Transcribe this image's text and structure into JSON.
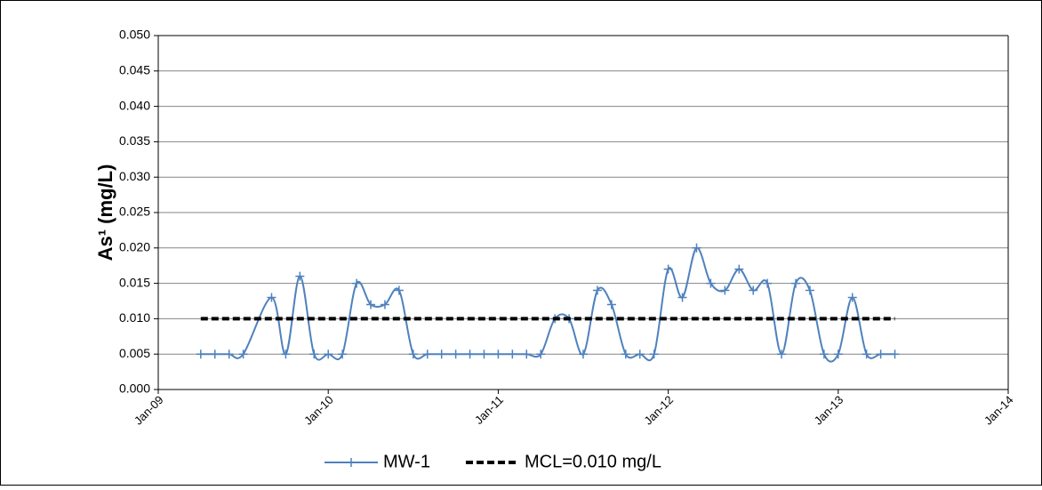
{
  "chart_data": {
    "type": "line",
    "y_label": "As¹ (mg/L)",
    "xlim": [
      "2009-01",
      "2014-01"
    ],
    "xticks": [
      {
        "value": "2009-01",
        "label": "Jan-09"
      },
      {
        "value": "2010-01",
        "label": "Jan-10"
      },
      {
        "value": "2011-01",
        "label": "Jan-11"
      },
      {
        "value": "2012-01",
        "label": "Jan-12"
      },
      {
        "value": "2013-01",
        "label": "Jan-13"
      },
      {
        "value": "2014-01",
        "label": "Jan-14"
      }
    ],
    "ylim": [
      0,
      0.05
    ],
    "yticks": [
      {
        "value": 0,
        "label": "0.000"
      },
      {
        "value": 0.005,
        "label": "0.005"
      },
      {
        "value": 0.01,
        "label": "0.010"
      },
      {
        "value": 0.015,
        "label": "0.015"
      },
      {
        "value": 0.02,
        "label": "0.020"
      },
      {
        "value": 0.025,
        "label": "0.025"
      },
      {
        "value": 0.03,
        "label": "0.030"
      },
      {
        "value": 0.035,
        "label": "0.035"
      },
      {
        "value": 0.04,
        "label": "0.040"
      },
      {
        "value": 0.045,
        "label": "0.045"
      },
      {
        "value": 0.05,
        "label": "0.050"
      }
    ],
    "grid": true,
    "legend": "bottom",
    "series": [
      {
        "name": "MW-1",
        "color": "#4f81bd",
        "style": "smooth-plus",
        "x": [
          "2009-04",
          "2009-05",
          "2009-06",
          "2009-07",
          "2009-09",
          "2009-10",
          "2009-11",
          "2009-12",
          "2010-01",
          "2010-02",
          "2010-03",
          "2010-04",
          "2010-05",
          "2010-06",
          "2010-07",
          "2010-08",
          "2010-09",
          "2010-10",
          "2010-11",
          "2010-12",
          "2011-01",
          "2011-02",
          "2011-03",
          "2011-04",
          "2011-05",
          "2011-06",
          "2011-07",
          "2011-08",
          "2011-09",
          "2011-10",
          "2011-11",
          "2011-12",
          "2012-01",
          "2012-02",
          "2012-03",
          "2012-04",
          "2012-05",
          "2012-06",
          "2012-07",
          "2012-08",
          "2012-09",
          "2012-10",
          "2012-11",
          "2012-12",
          "2013-01",
          "2013-02",
          "2013-03",
          "2013-04",
          "2013-05"
        ],
        "values": [
          0.005,
          0.005,
          0.005,
          0.005,
          0.013,
          0.005,
          0.016,
          0.005,
          0.005,
          0.005,
          0.015,
          0.012,
          0.012,
          0.014,
          0.005,
          0.005,
          0.005,
          0.005,
          0.005,
          0.005,
          0.005,
          0.005,
          0.005,
          0.005,
          0.01,
          0.01,
          0.005,
          0.014,
          0.012,
          0.005,
          0.005,
          0.005,
          0.017,
          0.013,
          0.02,
          0.015,
          0.014,
          0.017,
          0.014,
          0.015,
          0.005,
          0.015,
          0.014,
          0.005,
          0.005,
          0.013,
          0.005,
          0.005,
          0.005
        ]
      },
      {
        "name": "MCL=0.010 mg/L",
        "color": "#000000",
        "style": "dashed",
        "x": [
          "2009-04",
          "2013-05"
        ],
        "values": [
          0.01,
          0.01
        ]
      }
    ]
  }
}
